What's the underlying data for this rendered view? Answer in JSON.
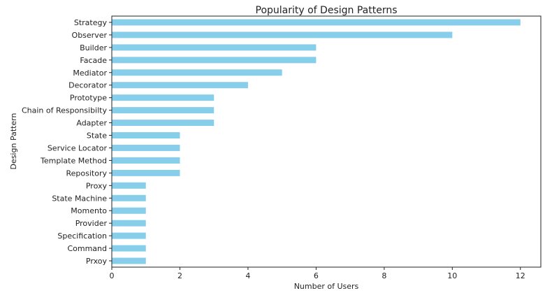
{
  "chart_data": {
    "type": "bar",
    "orientation": "horizontal",
    "title": "Popularity of Design Patterns",
    "xlabel": "Number of Users",
    "ylabel": "Design Pattern",
    "xlim": [
      0,
      12.6
    ],
    "xticks": [
      0,
      2,
      4,
      6,
      8,
      10,
      12
    ],
    "grid": false,
    "bar_color": "#87ceeb",
    "categories": [
      "Strategy",
      "Observer",
      "Builder",
      "Facade",
      "Mediator",
      "Decorator",
      "Prototype",
      "Chain of Responsibilty",
      "Adapter",
      "State",
      "Service Locator",
      "Template Method",
      "Repository",
      "Proxy",
      "State Machine",
      "Momento",
      "Provider",
      "Specification",
      "Command",
      "Prxoy"
    ],
    "values": [
      12,
      10,
      6,
      6,
      5,
      4,
      3,
      3,
      3,
      2,
      2,
      2,
      2,
      1,
      1,
      1,
      1,
      1,
      1,
      1
    ]
  }
}
